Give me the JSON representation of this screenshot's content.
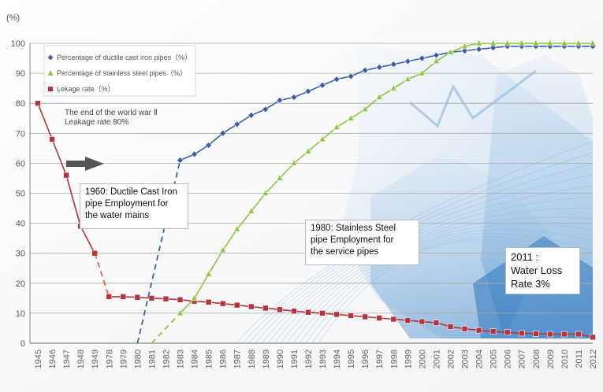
{
  "chart_data": {
    "type": "line",
    "y_unit_label": "(%)",
    "ylim": [
      0,
      100
    ],
    "yticks": [
      0,
      10,
      20,
      30,
      40,
      50,
      60,
      70,
      80,
      90,
      100
    ],
    "grid": true,
    "legend_position": "top-left",
    "categories": [
      "1945",
      "1946",
      "1947",
      "1948",
      "1949",
      "1978",
      "1979",
      "1980",
      "1981",
      "1982",
      "1983",
      "1984",
      "1985",
      "1986",
      "1987",
      "1988",
      "1989",
      "1990",
      "1991",
      "1992",
      "1993",
      "1994",
      "1995",
      "1996",
      "1997",
      "1998",
      "1999",
      "2000",
      "2001",
      "2002",
      "2003",
      "2004",
      "2005",
      "2006",
      "2007",
      "2008",
      "2009",
      "2010",
      "2011",
      "2012"
    ],
    "series": [
      {
        "name": "Percentage of ductile cast iron pipes（%）",
        "color": "#3a5fa8",
        "marker": "diamond",
        "points": [
          [
            1983,
            61
          ],
          [
            1984,
            63
          ],
          [
            1985,
            66
          ],
          [
            1986,
            70
          ],
          [
            1987,
            73
          ],
          [
            1988,
            76
          ],
          [
            1989,
            78
          ],
          [
            1990,
            81
          ],
          [
            1991,
            82
          ],
          [
            1992,
            84
          ],
          [
            1993,
            86
          ],
          [
            1994,
            88
          ],
          [
            1995,
            89
          ],
          [
            1996,
            91
          ],
          [
            1997,
            92
          ],
          [
            1998,
            93
          ],
          [
            1999,
            94
          ],
          [
            2000,
            95
          ],
          [
            2001,
            96
          ],
          [
            2002,
            97
          ],
          [
            2003,
            97.5
          ],
          [
            2004,
            98
          ],
          [
            2005,
            98.5
          ],
          [
            2006,
            99
          ],
          [
            2007,
            99
          ],
          [
            2008,
            99
          ],
          [
            2009,
            99
          ],
          [
            2010,
            99
          ],
          [
            2011,
            99
          ],
          [
            2012,
            99
          ]
        ],
        "dashed_lead_in": [
          [
            1980,
            0
          ],
          [
            1983,
            61
          ]
        ]
      },
      {
        "name": "Percentage of stainless steel pipes（%）",
        "color": "#8dc63f",
        "marker": "triangle",
        "points": [
          [
            1983,
            10
          ],
          [
            1984,
            15
          ],
          [
            1985,
            23
          ],
          [
            1986,
            31
          ],
          [
            1987,
            38
          ],
          [
            1988,
            44
          ],
          [
            1989,
            50
          ],
          [
            1990,
            55
          ],
          [
            1991,
            60
          ],
          [
            1992,
            64
          ],
          [
            1993,
            68
          ],
          [
            1994,
            72
          ],
          [
            1995,
            75
          ],
          [
            1996,
            78
          ],
          [
            1997,
            82
          ],
          [
            1998,
            85
          ],
          [
            1999,
            88
          ],
          [
            2000,
            90
          ],
          [
            2001,
            94
          ],
          [
            2002,
            97
          ],
          [
            2003,
            99
          ],
          [
            2004,
            100
          ],
          [
            2005,
            100
          ],
          [
            2006,
            100
          ],
          [
            2007,
            100
          ],
          [
            2008,
            100
          ],
          [
            2009,
            100
          ],
          [
            2010,
            100
          ],
          [
            2011,
            100
          ],
          [
            2012,
            100
          ]
        ],
        "dashed_lead_in": [
          [
            1981,
            0
          ],
          [
            1983,
            10
          ]
        ]
      },
      {
        "name": "Lekage rate（%）",
        "color": "#b5333a",
        "marker": "square",
        "points": [
          [
            1945,
            80
          ],
          [
            1946,
            68
          ],
          [
            1947,
            56
          ],
          [
            1948,
            39
          ],
          [
            1949,
            30
          ],
          [
            1978,
            15.5
          ],
          [
            1979,
            15.5
          ],
          [
            1980,
            15.3
          ],
          [
            1981,
            15
          ],
          [
            1982,
            14.8
          ],
          [
            1983,
            14.5
          ],
          [
            1984,
            14
          ],
          [
            1985,
            13.7
          ],
          [
            1986,
            13.2
          ],
          [
            1987,
            12.7
          ],
          [
            1988,
            12.2
          ],
          [
            1989,
            11.7
          ],
          [
            1990,
            11.2
          ],
          [
            1991,
            10.7
          ],
          [
            1992,
            10.3
          ],
          [
            1993,
            10
          ],
          [
            1994,
            9.6
          ],
          [
            1995,
            9.2
          ],
          [
            1996,
            8.8
          ],
          [
            1997,
            8.4
          ],
          [
            1998,
            8
          ],
          [
            1999,
            7.6
          ],
          [
            2000,
            7.2
          ],
          [
            2001,
            6.8
          ],
          [
            2002,
            5.5
          ],
          [
            2003,
            4.8
          ],
          [
            2004,
            4.3
          ],
          [
            2005,
            3.9
          ],
          [
            2006,
            3.6
          ],
          [
            2007,
            3.3
          ],
          [
            2008,
            3.2
          ],
          [
            2009,
            3
          ],
          [
            2010,
            3
          ],
          [
            2011,
            3
          ],
          [
            2012,
            2
          ]
        ],
        "dashed_gap": [
          [
            1949,
            30
          ],
          [
            1978,
            15.5
          ]
        ]
      }
    ],
    "annotations": {
      "war_line1": "The end of the world war Ⅱ",
      "war_line2": "Leakage rate 80%",
      "ductile_line1": "1960: Ductile Cast Iron",
      "ductile_line2": "pipe Employment for",
      "ductile_line3": "the water mains",
      "stainless_line1": "1980:  Stainless Steel",
      "stainless_line2": "pipe Employment  for",
      "stainless_line3": "the service pipes",
      "loss_line1": "2011 :",
      "loss_line2": "Water Loss",
      "loss_line3": "Rate 3%"
    }
  }
}
